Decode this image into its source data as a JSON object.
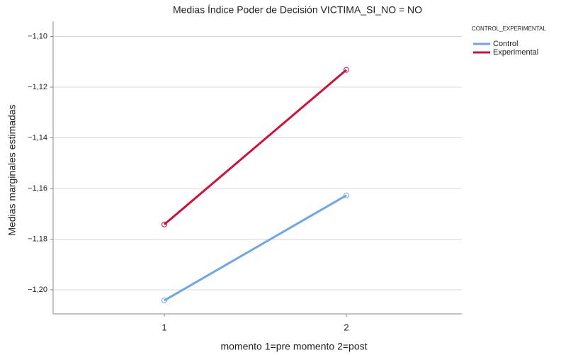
{
  "chart_data": {
    "type": "line",
    "title": "Medias Índice Poder de Decisión VICTIMA_SI_NO = NO",
    "x_label": "momento 1=pre momento 2=post",
    "y_label": "Medias marginales estimadas",
    "legend_title": "CONTROL_EXPERIMENTAL",
    "categories": [
      "1",
      "2"
    ],
    "series": [
      {
        "name": "Control",
        "color": "#6ea6e8",
        "values": [
          -1.2042,
          -1.1627
        ]
      },
      {
        "name": "Experimental",
        "color": "#d0103a",
        "values": [
          -1.1742,
          -1.1132
        ]
      }
    ],
    "ylim": [
      -1.2095,
      -1.094
    ],
    "yticks": [
      {
        "value": -1.1,
        "label": "−1,10"
      },
      {
        "value": -1.12,
        "label": "−1,12"
      },
      {
        "value": -1.14,
        "label": "−1,14"
      },
      {
        "value": -1.16,
        "label": "−1,16"
      },
      {
        "value": -1.18,
        "label": "−1,18"
      },
      {
        "value": -1.2,
        "label": "−1,20"
      }
    ],
    "grid": true
  }
}
